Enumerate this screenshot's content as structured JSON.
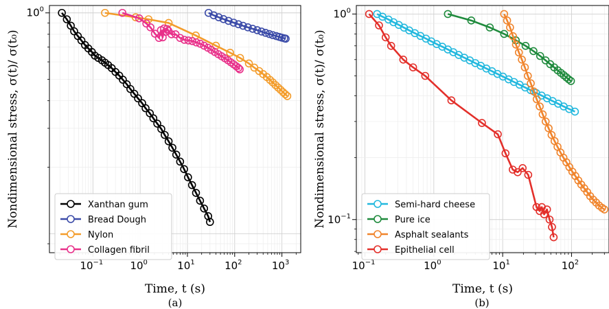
{
  "chart_data": [
    {
      "type": "line",
      "panel_label": "(a)",
      "xlabel": "Time, t (s)",
      "ylabel": "Nondimensional stress, σ(t)/ σ(t₀)",
      "x_scale": "log",
      "y_scale": "log",
      "xlim": [
        0.012,
        2500
      ],
      "ylim": [
        0.082,
        1.08
      ],
      "x_ticks": [
        {
          "value": 0.1,
          "base": "10",
          "exp": "−1"
        },
        {
          "value": 1,
          "base": "10",
          "exp": "0"
        },
        {
          "value": 10,
          "base": "10",
          "exp": "1"
        },
        {
          "value": 100,
          "base": "10",
          "exp": "2"
        },
        {
          "value": 1000,
          "base": "10",
          "exp": "3"
        }
      ],
      "y_ticks": [
        {
          "value": 1,
          "base": "10",
          "exp": "0"
        }
      ],
      "grid": true,
      "legend_position": "lower-left",
      "series": [
        {
          "name": "Xanthan gum",
          "color": "#000000",
          "x": [
            0.022,
            0.028,
            0.034,
            0.04,
            0.048,
            0.057,
            0.068,
            0.08,
            0.095,
            0.11,
            0.13,
            0.155,
            0.18,
            0.21,
            0.25,
            0.3,
            0.36,
            0.43,
            0.52,
            0.62,
            0.75,
            0.9,
            1.1,
            1.3,
            1.6,
            1.9,
            2.3,
            2.8,
            3.3,
            4.0,
            4.8,
            5.8,
            7.0,
            8.5,
            10.3,
            12.5,
            15.2,
            18.5,
            22.5,
            27.5,
            30
          ],
          "y": [
            1.0,
            0.935,
            0.875,
            0.825,
            0.785,
            0.75,
            0.715,
            0.69,
            0.665,
            0.64,
            0.625,
            0.61,
            0.595,
            0.58,
            0.562,
            0.54,
            0.52,
            0.498,
            0.475,
            0.452,
            0.43,
            0.41,
            0.39,
            0.37,
            0.351,
            0.333,
            0.315,
            0.298,
            0.28,
            0.262,
            0.245,
            0.228,
            0.212,
            0.196,
            0.18,
            0.166,
            0.153,
            0.141,
            0.13,
            0.12,
            0.113
          ]
        },
        {
          "name": "Bread Dough",
          "color": "#3b4ba8",
          "x": [
            28,
            36,
            46,
            58,
            74,
            95,
            120,
            150,
            190,
            240,
            300,
            370,
            450,
            540,
            640,
            760,
            880,
            1000,
            1120,
            1200
          ],
          "y": [
            1.0,
            0.975,
            0.955,
            0.937,
            0.92,
            0.903,
            0.888,
            0.874,
            0.86,
            0.847,
            0.835,
            0.823,
            0.812,
            0.802,
            0.793,
            0.785,
            0.778,
            0.772,
            0.767,
            0.764
          ]
        },
        {
          "name": "Nylon",
          "color": "#f39c2b",
          "x": [
            0.18,
            0.8,
            1.5,
            4.0,
            15,
            40,
            80,
            130,
            200,
            260,
            330,
            400,
            480,
            560,
            640,
            730,
            830,
            940,
            1060,
            1180,
            1300
          ],
          "y": [
            1.0,
            0.955,
            0.935,
            0.9,
            0.79,
            0.71,
            0.66,
            0.625,
            0.59,
            0.565,
            0.545,
            0.528,
            0.512,
            0.497,
            0.484,
            0.471,
            0.459,
            0.448,
            0.437,
            0.428,
            0.42
          ]
        },
        {
          "name": "Collagen fibril",
          "color": "#e8318a",
          "x": [
            0.42,
            0.95,
            1.35,
            1.65,
            2.05,
            2.5,
            2.75,
            3.0,
            3.2,
            3.45,
            3.7,
            3.95,
            4.6,
            5.6,
            7.0,
            8.6,
            10.5,
            12.7,
            15.4,
            18.6,
            22.5,
            27.0,
            32.0,
            38.0,
            45.0,
            53.0,
            62.0,
            72.0,
            83.0,
            95.0,
            108.0,
            120.0,
            128.0
          ],
          "y": [
            1.0,
            0.945,
            0.895,
            0.86,
            0.805,
            0.77,
            0.835,
            0.775,
            0.85,
            0.82,
            0.845,
            0.83,
            0.8,
            0.8,
            0.77,
            0.755,
            0.75,
            0.745,
            0.735,
            0.725,
            0.71,
            0.695,
            0.68,
            0.665,
            0.65,
            0.636,
            0.623,
            0.61,
            0.597,
            0.585,
            0.573,
            0.563,
            0.555
          ]
        }
      ]
    },
    {
      "type": "line",
      "panel_label": "(b)",
      "xlabel": "Time, t (s)",
      "ylabel": "Nondimensional stress, σ(t)/ σ(t₀)",
      "x_scale": "log",
      "y_scale": "log",
      "xlim": [
        0.075,
        350
      ],
      "ylim": [
        0.069,
        1.1
      ],
      "x_ticks": [
        {
          "value": 0.1,
          "base": "10",
          "exp": "−1"
        },
        {
          "value": 1,
          "base": "10",
          "exp": "0"
        },
        {
          "value": 10,
          "base": "10",
          "exp": "1"
        },
        {
          "value": 100,
          "base": "10",
          "exp": "2"
        }
      ],
      "y_ticks": [
        {
          "value": 1,
          "base": "10",
          "exp": "0"
        },
        {
          "value": 0.1,
          "base": "10",
          "exp": "−1"
        }
      ],
      "grid": true,
      "legend_position": "lower-left",
      "series": [
        {
          "name": "Semi-hard cheese",
          "color": "#22b8de",
          "x": [
            0.15,
            0.18,
            0.22,
            0.26,
            0.31,
            0.37,
            0.44,
            0.53,
            0.64,
            0.77,
            0.92,
            1.1,
            1.33,
            1.6,
            1.92,
            2.3,
            2.77,
            3.33,
            4.0,
            4.8,
            5.8,
            7.0,
            8.4,
            10.1,
            12.2,
            14.6,
            17.6,
            21.2,
            25.5,
            30.6,
            36.8,
            44.2,
            53.2,
            64.0,
            76.9,
            92.5,
            112.0
          ],
          "y": [
            1.0,
            0.97,
            0.94,
            0.912,
            0.885,
            0.858,
            0.832,
            0.807,
            0.782,
            0.759,
            0.736,
            0.714,
            0.693,
            0.672,
            0.652,
            0.632,
            0.613,
            0.595,
            0.577,
            0.56,
            0.543,
            0.527,
            0.511,
            0.496,
            0.481,
            0.467,
            0.453,
            0.439,
            0.426,
            0.413,
            0.401,
            0.389,
            0.377,
            0.366,
            0.355,
            0.345,
            0.335
          ]
        },
        {
          "name": "Pure ice",
          "color": "#1e8a3c",
          "x": [
            1.6,
            3.5,
            6.5,
            10.5,
            15.5,
            21.5,
            28.0,
            35.0,
            42.0,
            49.0,
            56.0,
            63.0,
            70.0,
            77.0,
            84.0,
            91.0,
            98.0
          ],
          "y": [
            1.0,
            0.93,
            0.86,
            0.8,
            0.745,
            0.7,
            0.66,
            0.625,
            0.595,
            0.57,
            0.55,
            0.532,
            0.517,
            0.504,
            0.492,
            0.481,
            0.472
          ]
        },
        {
          "name": "Asphalt sealants",
          "color": "#f0842c",
          "x": [
            10.5,
            11.6,
            12.8,
            14.1,
            15.6,
            17.2,
            19.0,
            21.0,
            23.2,
            25.6,
            28.3,
            31.2,
            34.5,
            38.1,
            42.1,
            46.5,
            51.3,
            56.7,
            62.6,
            69.1,
            76.3,
            84.3,
            93.1,
            102.8,
            113.5,
            125.4,
            138.5,
            152.9,
            168.9,
            186.5,
            206.0,
            227.5,
            251.2,
            277.4,
            300.0
          ],
          "y": [
            1.0,
            0.93,
            0.86,
            0.78,
            0.71,
            0.65,
            0.6,
            0.55,
            0.5,
            0.46,
            0.42,
            0.385,
            0.355,
            0.325,
            0.3,
            0.278,
            0.258,
            0.241,
            0.226,
            0.212,
            0.2,
            0.19,
            0.18,
            0.171,
            0.163,
            0.155,
            0.148,
            0.142,
            0.136,
            0.13,
            0.125,
            0.121,
            0.117,
            0.114,
            0.112
          ]
        },
        {
          "name": "Epithelial cell",
          "color": "#e32f2a",
          "x": [
            0.115,
            0.16,
            0.2,
            0.24,
            0.36,
            0.5,
            0.75,
            1.8,
            5.0,
            8.5,
            11.0,
            14.0,
            16.5,
            19.5,
            23.5,
            31.0,
            34.5,
            37.0,
            40.0,
            44.0,
            48.0,
            52.0,
            55.0
          ],
          "y": [
            1.0,
            0.88,
            0.77,
            0.7,
            0.6,
            0.55,
            0.5,
            0.38,
            0.295,
            0.26,
            0.21,
            0.175,
            0.17,
            0.178,
            0.165,
            0.115,
            0.11,
            0.115,
            0.106,
            0.112,
            0.1,
            0.092,
            0.082
          ]
        }
      ]
    }
  ]
}
